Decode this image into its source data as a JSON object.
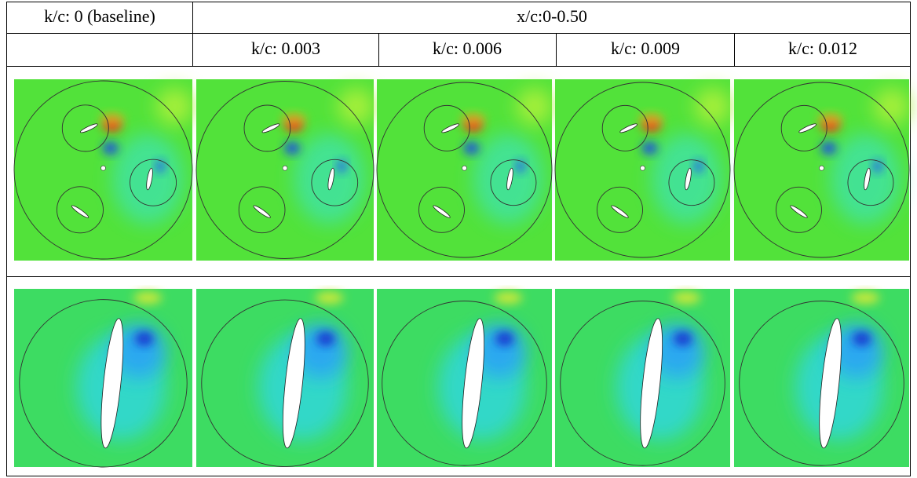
{
  "table": {
    "header": {
      "baseline": "k/c: 0 (baseline)",
      "range": "x/c:0-0.50"
    },
    "columns": [
      "k/c: 0.003",
      "k/c: 0.006",
      "k/c: 0.009",
      "k/c: 0.012"
    ]
  }
}
